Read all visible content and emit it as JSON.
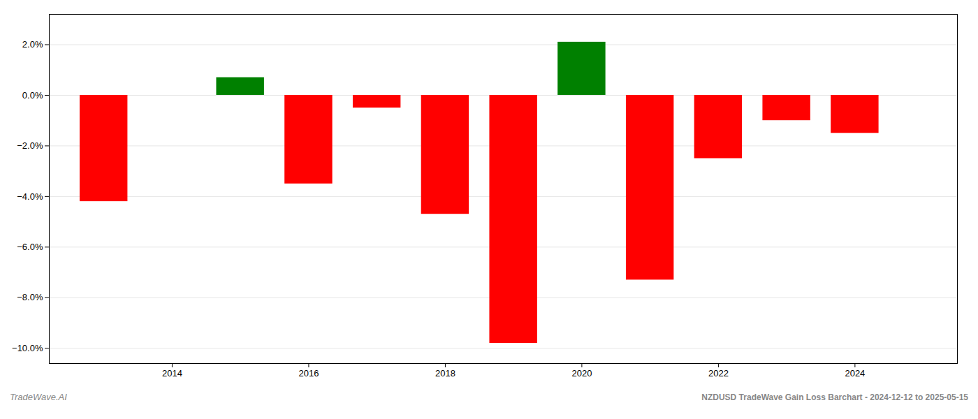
{
  "chart_data": {
    "type": "bar",
    "title": "NZDUSD TradeWave Gain Loss Barchart - 2024-12-12 to 2025-05-15",
    "annotations": [
      "TradeWave.AI"
    ],
    "x": [
      2013,
      2015,
      2016,
      2017,
      2018,
      2019,
      2020,
      2021,
      2022,
      2023,
      2024
    ],
    "values": [
      -4.2,
      0.7,
      -3.5,
      -0.5,
      -4.7,
      -9.8,
      2.1,
      -7.3,
      -2.5,
      -1.0,
      -1.5
    ],
    "colors": [
      "#ff0000",
      "#008000",
      "#ff0000",
      "#ff0000",
      "#ff0000",
      "#ff0000",
      "#008000",
      "#ff0000",
      "#ff0000",
      "#ff0000",
      "#ff0000"
    ],
    "xlim": [
      2012.2,
      2025.5
    ],
    "xticks": [
      2014,
      2016,
      2018,
      2020,
      2022,
      2024
    ],
    "ylim": [
      -10.6,
      3.2
    ],
    "yticks": [
      {
        "value": 2.0,
        "label": "2.0%"
      },
      {
        "value": 0.0,
        "label": "0.0%"
      },
      {
        "value": -2.0,
        "label": "−2.0%"
      },
      {
        "value": -4.0,
        "label": "−4.0%"
      },
      {
        "value": -6.0,
        "label": "−6.0%"
      },
      {
        "value": -8.0,
        "label": "−8.0%"
      },
      {
        "value": -10.0,
        "label": "−10.0%"
      }
    ],
    "grid": true
  }
}
